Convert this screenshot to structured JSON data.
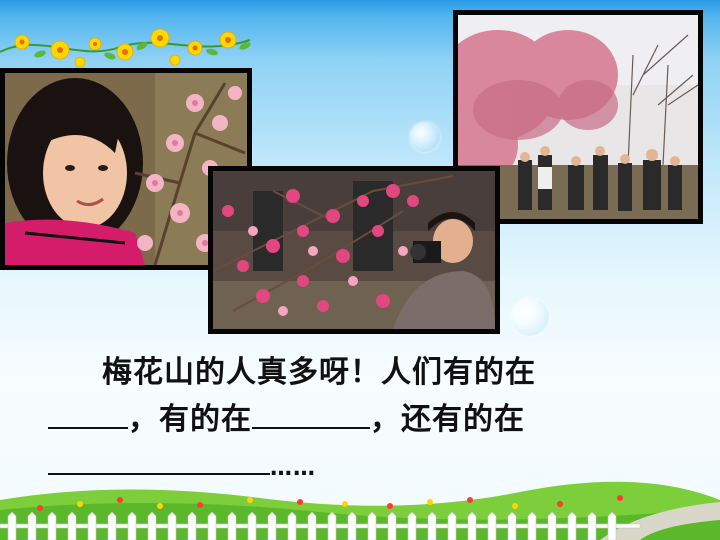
{
  "sentence": {
    "line1": "梅花山的人真多呀！人们有的在",
    "line2_sep1": "，有的在",
    "line2_sep2": "，还有的在",
    "line3_end": "……"
  },
  "colors": {
    "sky_top": "#2c9be6",
    "sky_bottom": "#f8fdff",
    "frame": "#050505",
    "text": "#111111"
  },
  "icons": [
    "flower-garland-icon",
    "bubble-icon",
    "fence-icon",
    "grass-icon"
  ]
}
